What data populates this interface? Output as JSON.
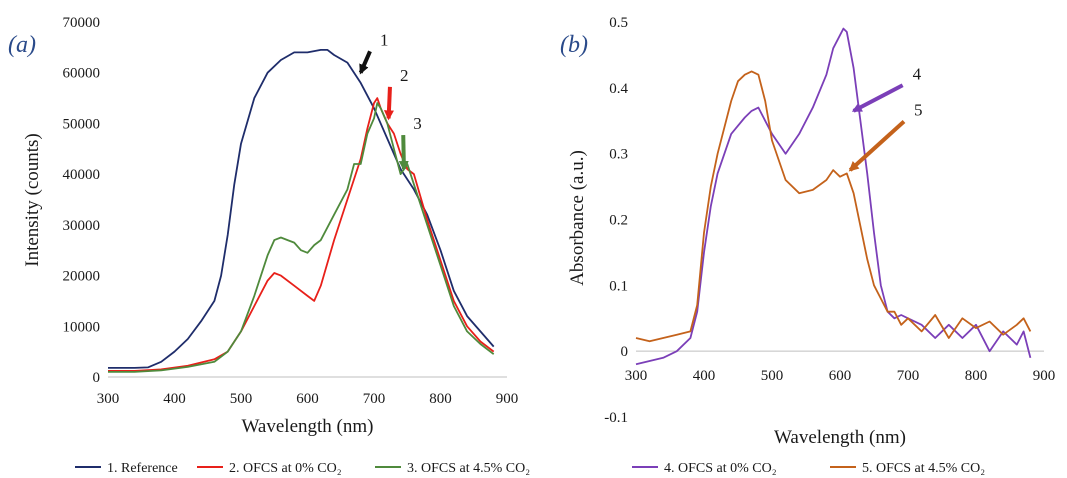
{
  "chart_data": [
    {
      "type": "line",
      "panel_label": "(a)",
      "xlabel": "Wavelength (nm)",
      "ylabel": "Intensity (counts)",
      "xlim": [
        300,
        900
      ],
      "ylim": [
        0,
        70000
      ],
      "xticks": [
        300,
        400,
        500,
        600,
        700,
        800,
        900
      ],
      "yticks": [
        0,
        10000,
        20000,
        30000,
        40000,
        50000,
        60000,
        70000
      ],
      "grid": false,
      "legend_position": "bottom",
      "series": [
        {
          "name": "1. Reference",
          "color": "#1f2d6b",
          "x": [
            300,
            340,
            360,
            380,
            400,
            420,
            440,
            460,
            470,
            480,
            490,
            500,
            520,
            540,
            560,
            580,
            600,
            620,
            630,
            640,
            660,
            680,
            700,
            720,
            740,
            760,
            780,
            800,
            820,
            840,
            860,
            880
          ],
          "y": [
            1800,
            1800,
            1900,
            3000,
            5000,
            7500,
            11000,
            15000,
            20000,
            28000,
            38000,
            46000,
            55000,
            60000,
            62500,
            64000,
            64000,
            64500,
            64500,
            63500,
            62000,
            58000,
            53000,
            47000,
            41000,
            37000,
            32000,
            25000,
            17000,
            12000,
            9000,
            6000
          ]
        },
        {
          "name": "2. OFCS at 0% CO₂",
          "color": "#e8201a",
          "x": [
            300,
            340,
            380,
            420,
            460,
            480,
            500,
            520,
            540,
            550,
            560,
            580,
            600,
            610,
            620,
            640,
            660,
            680,
            690,
            700,
            705,
            710,
            720,
            730,
            740,
            750,
            760,
            780,
            800,
            820,
            840,
            860,
            880
          ],
          "y": [
            1200,
            1200,
            1500,
            2200,
            3500,
            5000,
            9000,
            14000,
            19000,
            20500,
            20000,
            18000,
            16000,
            15000,
            18000,
            27000,
            35000,
            43000,
            49000,
            54000,
            55000,
            53000,
            50000,
            48000,
            44000,
            41000,
            40000,
            31000,
            23000,
            15000,
            10000,
            7000,
            5000
          ]
        },
        {
          "name": "3. OFCS at 4.5% CO₂",
          "color": "#4f8a3c",
          "x": [
            300,
            340,
            380,
            420,
            460,
            480,
            500,
            520,
            540,
            550,
            560,
            570,
            580,
            590,
            600,
            610,
            620,
            640,
            660,
            670,
            680,
            690,
            700,
            705,
            710,
            720,
            730,
            740,
            750,
            760,
            780,
            800,
            820,
            840,
            860,
            880
          ],
          "y": [
            1000,
            1000,
            1300,
            2000,
            3000,
            5000,
            9000,
            16000,
            24000,
            27000,
            27500,
            27000,
            26500,
            25000,
            24500,
            26000,
            27000,
            32000,
            37000,
            42000,
            42000,
            48000,
            51000,
            54000,
            53000,
            50000,
            45000,
            40000,
            42000,
            38000,
            30000,
            22000,
            14000,
            9000,
            6500,
            4500
          ]
        }
      ],
      "annotations": [
        {
          "text": "1",
          "x": 700,
          "y": 65000,
          "ax": 680,
          "ay": 60000,
          "color": "#111111"
        },
        {
          "text": "2",
          "x": 730,
          "y": 58000,
          "ax": 722,
          "ay": 51000,
          "color": "#e8201a"
        },
        {
          "text": "3",
          "x": 750,
          "y": 48500,
          "ax": 745,
          "ay": 41000,
          "color": "#4f8a3c"
        }
      ]
    },
    {
      "type": "line",
      "panel_label": "(b)",
      "xlabel": "Wavelength (nm)",
      "ylabel": "Absorbance (a.u.)",
      "xlim": [
        300,
        900
      ],
      "ylim": [
        -0.1,
        0.5
      ],
      "xticks": [
        300,
        400,
        500,
        600,
        700,
        800,
        900
      ],
      "yticks": [
        -0.1,
        0,
        0.1,
        0.2,
        0.3,
        0.4,
        0.5
      ],
      "grid": false,
      "legend_position": "bottom",
      "series": [
        {
          "name": "4. OFCS at 0% CO₂",
          "color": "#7b3fb8",
          "x": [
            300,
            320,
            340,
            360,
            380,
            390,
            400,
            410,
            420,
            440,
            460,
            470,
            480,
            490,
            500,
            520,
            540,
            560,
            580,
            590,
            600,
            605,
            610,
            620,
            630,
            640,
            650,
            660,
            670,
            680,
            690,
            700,
            720,
            740,
            760,
            780,
            800,
            820,
            840,
            860,
            870,
            880
          ],
          "y": [
            -0.02,
            -0.015,
            -0.01,
            0.0,
            0.02,
            0.06,
            0.15,
            0.22,
            0.27,
            0.33,
            0.355,
            0.365,
            0.37,
            0.35,
            0.33,
            0.3,
            0.33,
            0.37,
            0.42,
            0.46,
            0.48,
            0.49,
            0.485,
            0.43,
            0.35,
            0.27,
            0.18,
            0.1,
            0.06,
            0.05,
            0.055,
            0.05,
            0.04,
            0.02,
            0.04,
            0.02,
            0.04,
            0.0,
            0.03,
            0.01,
            0.03,
            -0.01
          ]
        },
        {
          "name": "5. OFCS at 4.5% CO₂",
          "color": "#c4621b",
          "x": [
            300,
            320,
            340,
            360,
            380,
            390,
            400,
            410,
            420,
            440,
            450,
            460,
            470,
            480,
            490,
            500,
            520,
            540,
            560,
            580,
            590,
            600,
            610,
            620,
            630,
            640,
            650,
            660,
            670,
            680,
            690,
            700,
            720,
            740,
            760,
            780,
            800,
            820,
            840,
            860,
            870,
            880
          ],
          "y": [
            0.02,
            0.015,
            0.02,
            0.025,
            0.03,
            0.07,
            0.18,
            0.25,
            0.3,
            0.38,
            0.41,
            0.42,
            0.425,
            0.42,
            0.38,
            0.32,
            0.26,
            0.24,
            0.245,
            0.26,
            0.275,
            0.265,
            0.27,
            0.24,
            0.19,
            0.14,
            0.1,
            0.08,
            0.06,
            0.06,
            0.04,
            0.05,
            0.03,
            0.055,
            0.02,
            0.05,
            0.035,
            0.045,
            0.025,
            0.04,
            0.05,
            0.03
          ]
        }
      ],
      "annotations": [
        {
          "text": "4",
          "x": 698,
          "y": 0.41,
          "ax": 620,
          "ay": 0.365,
          "color": "#7b3fb8"
        },
        {
          "text": "5",
          "x": 700,
          "y": 0.355,
          "ax": 615,
          "ay": 0.275,
          "color": "#c4621b"
        }
      ]
    }
  ]
}
